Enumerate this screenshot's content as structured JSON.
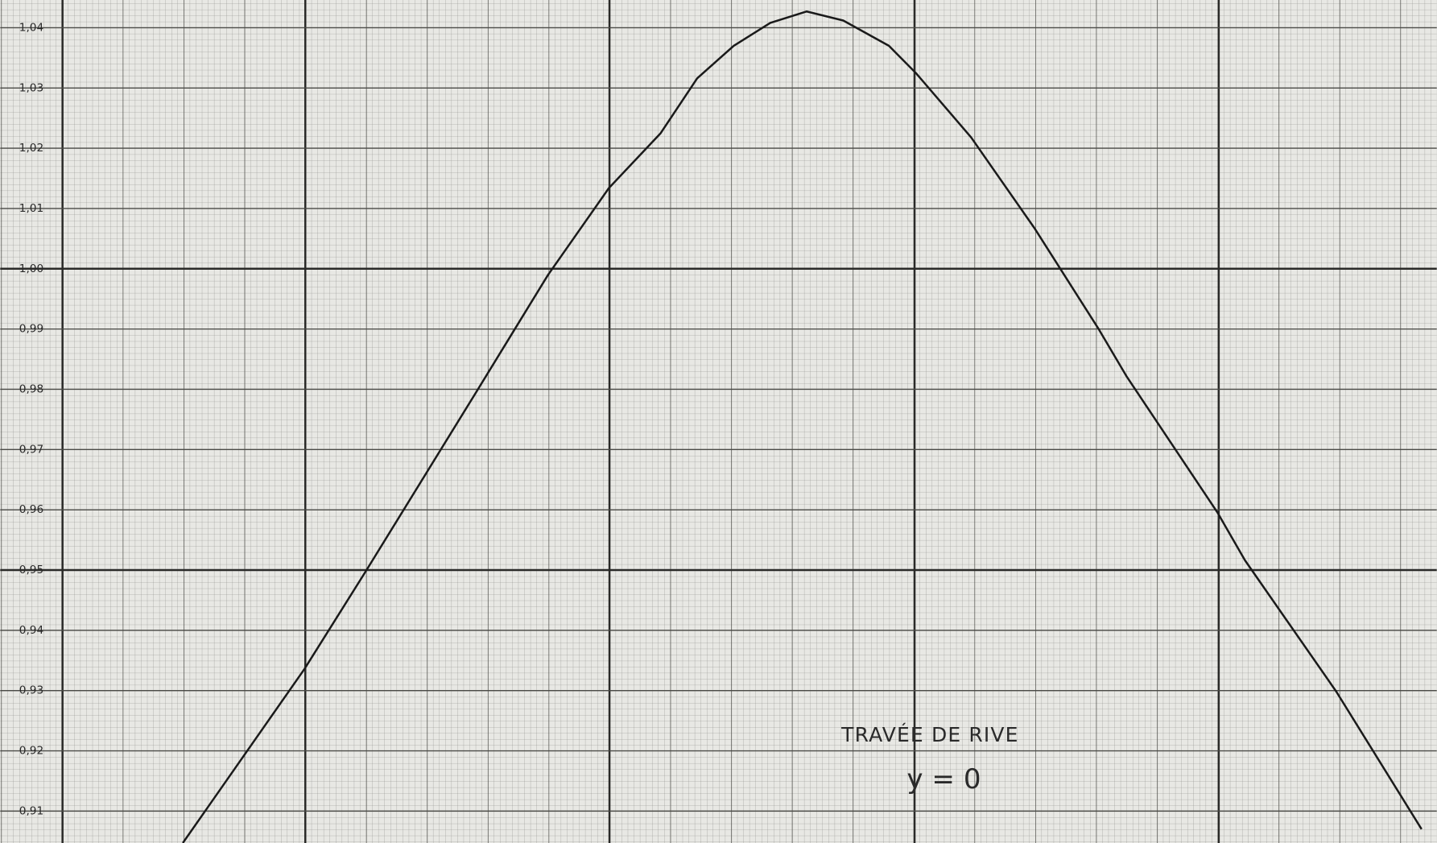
{
  "chart_data": {
    "type": "line",
    "annotations": [
      "TRAVÉE DE RIVE",
      "y = 0"
    ],
    "x": [
      -1.4,
      -1.0,
      -0.8,
      -0.44,
      -0.2,
      0,
      0.17,
      0.29,
      0.41,
      0.53,
      0.65,
      0.77,
      0.92,
      1.01,
      1.19,
      1.4,
      1.61,
      1.7,
      2.0,
      2.09,
      2.39,
      2.67
    ],
    "values": [
      0.9047,
      0.9336,
      0.9497,
      0.9792,
      0.999,
      1.0134,
      1.0225,
      1.0316,
      1.037,
      1.0408,
      1.0427,
      1.0412,
      1.037,
      1.0324,
      1.0218,
      1.0066,
      0.9899,
      0.9822,
      0.9595,
      0.9516,
      0.9298,
      0.907
    ],
    "color": "#1a1a1a",
    "xlim": [
      -2.0,
      2.72
    ],
    "ylim": [
      0.9047,
      1.0446
    ],
    "yticks": [
      {
        "value": 1.04,
        "label": "1,04"
      },
      {
        "value": 1.03,
        "label": "1,03"
      },
      {
        "value": 1.02,
        "label": "1,02"
      },
      {
        "value": 1.01,
        "label": "1,01"
      },
      {
        "value": 1.0,
        "label": "1,00"
      },
      {
        "value": 0.99,
        "label": "0,99"
      },
      {
        "value": 0.98,
        "label": "0,98"
      },
      {
        "value": 0.97,
        "label": "0,97"
      },
      {
        "value": 0.96,
        "label": "0,96"
      },
      {
        "value": 0.95,
        "label": "0,95"
      },
      {
        "value": 0.94,
        "label": "0,94"
      },
      {
        "value": 0.93,
        "label": "0,93"
      },
      {
        "value": 0.92,
        "label": "0,92"
      },
      {
        "value": 0.91,
        "label": "0,91"
      }
    ],
    "grid": true
  }
}
